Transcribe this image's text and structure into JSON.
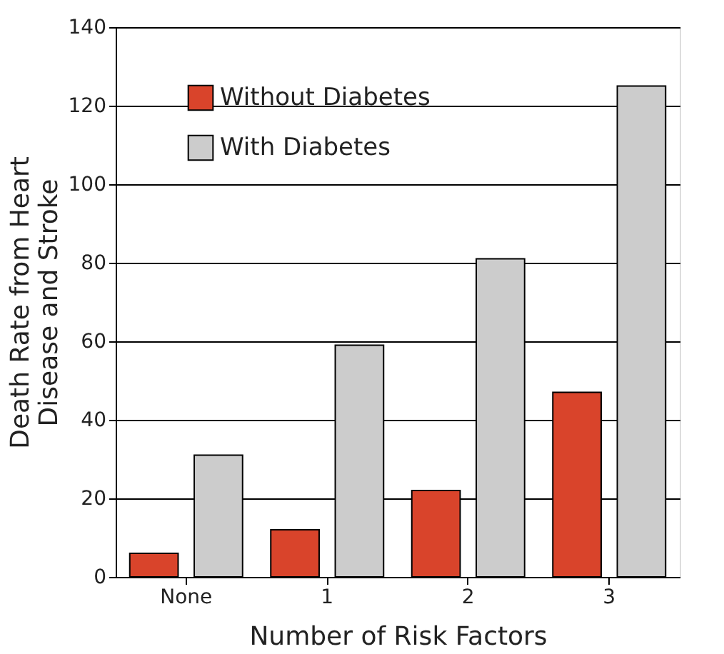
{
  "chart_data": {
    "type": "bar",
    "xlabel": "Number of Risk Factors",
    "ylabel": "Death Rate from Heart Disease and Stroke",
    "categories": [
      "None",
      "1",
      "2",
      "3"
    ],
    "series": [
      {
        "name": "Without Diabetes",
        "color": "#d9442b",
        "values": [
          6,
          12,
          22,
          47
        ]
      },
      {
        "name": "With Diabetes",
        "color": "#cccccc",
        "values": [
          31,
          59,
          81,
          125
        ]
      }
    ],
    "ylim": [
      0,
      140
    ],
    "yticks": [
      0,
      20,
      40,
      60,
      80,
      100,
      120,
      140
    ],
    "grid": "y",
    "legend": "top left"
  }
}
